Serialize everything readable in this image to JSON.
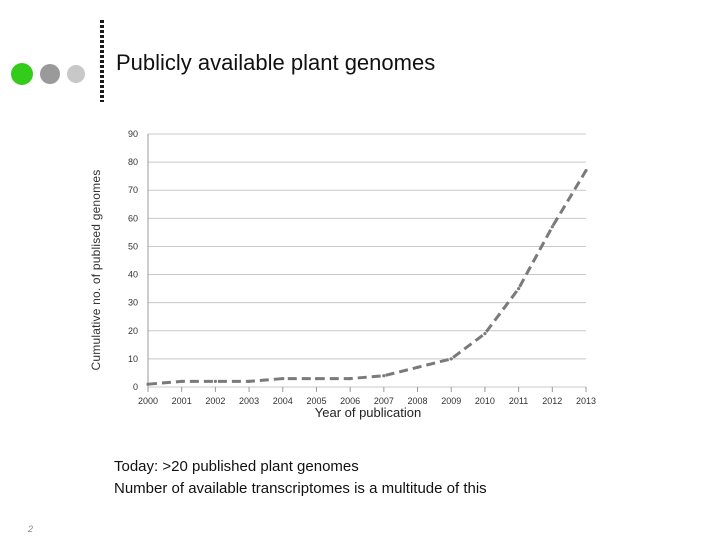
{
  "slide": {
    "title": "Publicly available plant genomes",
    "notes": [
      "Today: >20 published plant genomes",
      "Number of available transcriptomes is a multitude of this"
    ],
    "page_number": "2",
    "decor_colors": {
      "dot_green": "#33cc1a",
      "dot_gray_dark": "#9a9a9a",
      "dot_gray_light": "#c8c8c8"
    }
  },
  "chart_data": {
    "type": "line",
    "title": "",
    "xlabel": "Year of publication",
    "ylabel": "Cumulative no. of publised genomes",
    "x": [
      2000,
      2001,
      2002,
      2003,
      2004,
      2005,
      2006,
      2007,
      2008,
      2009,
      2010,
      2011,
      2012,
      2013
    ],
    "series": [
      {
        "values": [
          1,
          2,
          2,
          2,
          3,
          3,
          3,
          4,
          7,
          10,
          19,
          35,
          57,
          77
        ],
        "color": "#7a7a7a",
        "style": "dashed"
      }
    ],
    "yticks": [
      0,
      10,
      20,
      30,
      40,
      50,
      60,
      70,
      80,
      90
    ],
    "ylim": [
      0,
      90
    ],
    "xlim": [
      2000,
      2013
    ],
    "grid": true
  }
}
